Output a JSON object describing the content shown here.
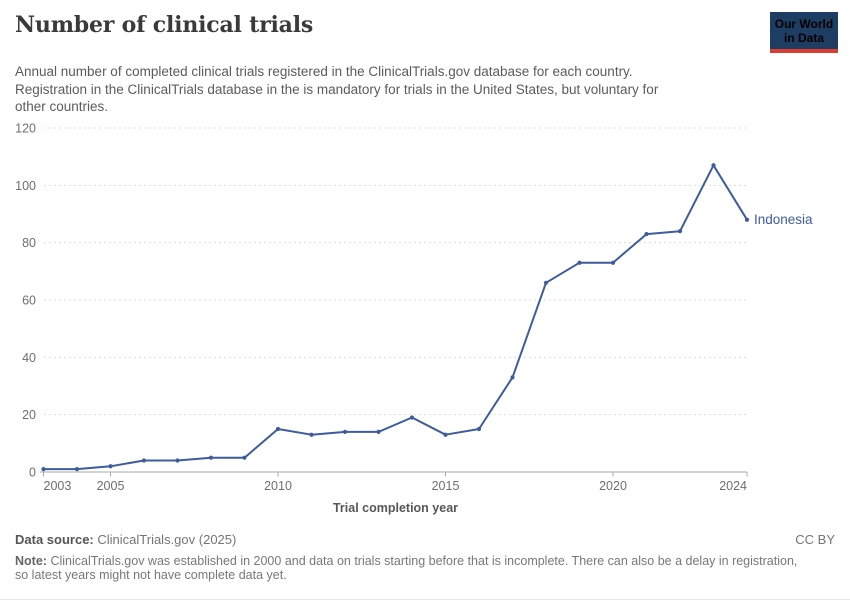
{
  "header": {
    "title": "Number of clinical trials",
    "subtitle_lines": [
      "Annual number of completed clinical trials registered in the ClinicalTrials.gov database for each country.",
      "Registration in the ClinicalTrials database in the is mandatory for trials in the United States, but voluntary for",
      "other countries."
    ],
    "logo": {
      "line1": "Our World",
      "line2": "in Data"
    }
  },
  "chart_data": {
    "type": "line",
    "title": "Number of clinical trials",
    "xlabel": "Trial completion year",
    "ylabel": "",
    "x": [
      2003,
      2004,
      2005,
      2006,
      2007,
      2008,
      2009,
      2010,
      2011,
      2012,
      2013,
      2014,
      2015,
      2016,
      2017,
      2018,
      2019,
      2020,
      2021,
      2022,
      2023,
      2024
    ],
    "series": [
      {
        "name": "Indonesia",
        "values": [
          1,
          1,
          2,
          4,
          4,
          5,
          5,
          15,
          13,
          14,
          14,
          19,
          13,
          15,
          33,
          66,
          73,
          73,
          83,
          84,
          107,
          88
        ]
      }
    ],
    "ylim": [
      0,
      120
    ],
    "yticks": [
      0,
      20,
      40,
      60,
      80,
      100,
      120
    ],
    "xticks": [
      2003,
      2005,
      2010,
      2015,
      2020,
      2024
    ],
    "grid": "horizontal-dashed",
    "legend": "end-of-line label",
    "end_label": "Indonesia"
  },
  "footer": {
    "datasource_label": "Data source:",
    "datasource_value": "ClinicalTrials.gov (2025)",
    "license": "CC BY",
    "note_label": "Note:",
    "note_line1": "ClinicalTrials.gov was established in 2000 and data on trials starting before that is incomplete. There can also be a delay in registration,",
    "note_line2": "so latest years might not have complete data yet."
  },
  "colors": {
    "line": "#3d5c9e",
    "end_label": "#3d5c9e",
    "logo_bg": "#1d3d63",
    "logo_stripe": "#dc3d33",
    "gridline": "#dcdcdc",
    "axis_line": "#a8a8a8",
    "tick_text": "#6e6e6e"
  }
}
